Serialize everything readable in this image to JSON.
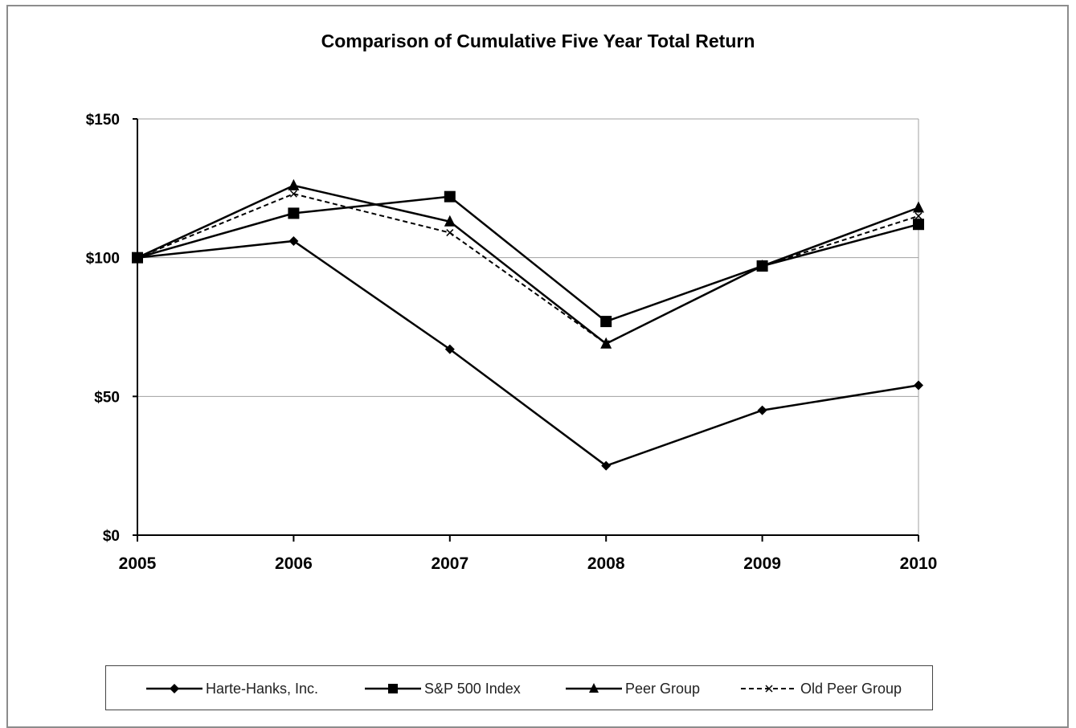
{
  "chart_data": {
    "type": "line",
    "title": "Comparison of Cumulative Five Year Total Return",
    "x": [
      "2005",
      "2006",
      "2007",
      "2008",
      "2009",
      "2010"
    ],
    "y_ticks": [
      "$0",
      "$50",
      "$100",
      "$150"
    ],
    "ylim": [
      0,
      150
    ],
    "grid": "horizontal",
    "legend_position": "bottom",
    "series": [
      {
        "name": "Harte-Hanks, Inc.",
        "marker": "diamond",
        "dash": "solid",
        "values": [
          100,
          106,
          67,
          25,
          45,
          54
        ]
      },
      {
        "name": "S&P 500 Index",
        "marker": "square",
        "dash": "solid",
        "values": [
          100,
          116,
          122,
          77,
          97,
          112
        ]
      },
      {
        "name": "Peer Group",
        "marker": "triangle",
        "dash": "solid",
        "values": [
          100,
          126,
          113,
          69,
          97,
          118
        ]
      },
      {
        "name": "Old Peer Group",
        "marker": "x",
        "dash": "dashed",
        "values": [
          100,
          123,
          109,
          69,
          97,
          115
        ]
      }
    ]
  }
}
